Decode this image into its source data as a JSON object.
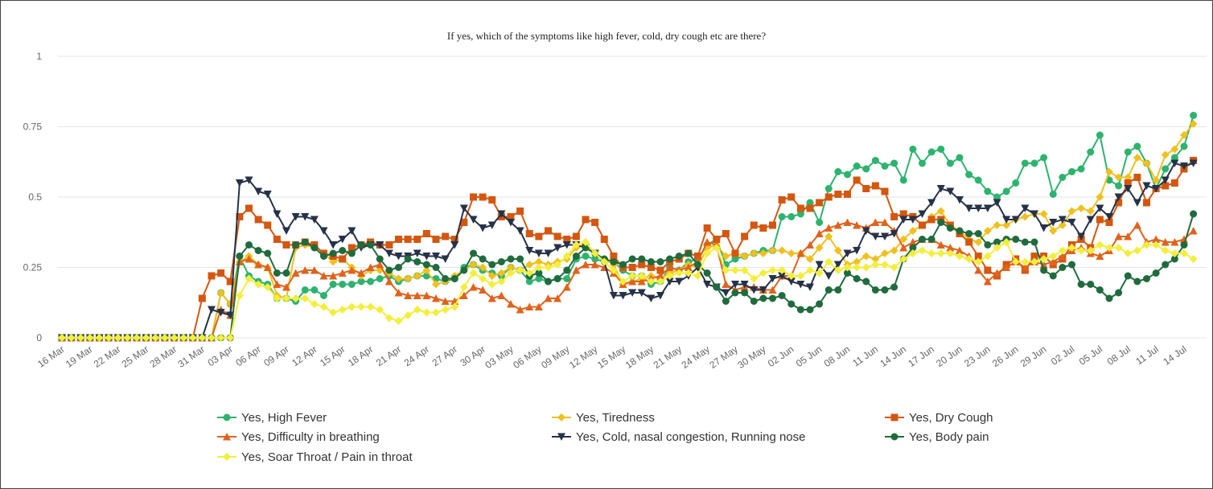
{
  "chart_data": {
    "type": "line",
    "title": "If yes, which of the symptoms like high fever, cold, dry cough etc are there?",
    "categories": [
      "16 Mar",
      null,
      null,
      "19 Mar",
      null,
      null,
      "22 Mar",
      null,
      null,
      "25 Mar",
      null,
      null,
      "28 Mar",
      null,
      null,
      "31 Mar",
      null,
      null,
      "03 Apr",
      null,
      null,
      "06 Apr",
      null,
      null,
      "09 Apr",
      null,
      null,
      "12 Apr",
      null,
      null,
      "15 Apr",
      null,
      null,
      "18 Apr",
      null,
      null,
      "21 Apr",
      null,
      null,
      "24 Apr",
      null,
      null,
      "27 Apr",
      null,
      null,
      "30 Apr",
      null,
      null,
      "03 May",
      null,
      null,
      "06 May",
      null,
      null,
      "09 May",
      null,
      null,
      "12 May",
      null,
      null,
      "15 May",
      null,
      null,
      "18 May",
      null,
      null,
      "21 May",
      null,
      null,
      "24 May",
      null,
      null,
      "27 May",
      null,
      null,
      "30 May",
      null,
      null,
      "02 Jun",
      null,
      null,
      "05 Jun",
      null,
      null,
      "08 Jun",
      null,
      null,
      "11 Jun",
      null,
      null,
      "14 Jun",
      null,
      null,
      "17 Jun",
      null,
      null,
      "20 Jun",
      null,
      null,
      "23 Jun",
      null,
      null,
      "26 Jun",
      null,
      null,
      "29 Jun",
      null,
      null,
      "02 Jul",
      null,
      null,
      "05 Jul",
      null,
      null,
      "08 Jul",
      null,
      null,
      "11 Jul",
      null,
      null,
      "14 Jul",
      null
    ],
    "ylim": [
      0,
      1
    ],
    "yticks": [
      0,
      0.25,
      0.5,
      0.75,
      1
    ],
    "grid": true,
    "series": [
      {
        "name": "Yes, High Fever",
        "color": "#2db36e",
        "marker": "circle",
        "values": [
          0,
          0,
          0,
          0,
          0,
          0,
          0,
          0,
          0,
          0,
          0,
          0,
          0,
          0,
          0,
          0,
          0,
          0.16,
          0.12,
          0.29,
          0.22,
          0.2,
          0.19,
          0.14,
          0.14,
          0.13,
          0.17,
          0.17,
          0.15,
          0.19,
          0.19,
          0.19,
          0.2,
          0.2,
          0.21,
          0.22,
          0.2,
          0.21,
          0.22,
          0.22,
          0.21,
          0.2,
          0.21,
          0.25,
          0.26,
          0.24,
          0.23,
          0.22,
          0.25,
          0.24,
          0.2,
          0.21,
          0.2,
          0.21,
          0.21,
          0.28,
          0.29,
          0.28,
          0.27,
          0.27,
          0.24,
          0.22,
          0.22,
          0.19,
          0.2,
          0.25,
          0.24,
          0.27,
          0.28,
          0.33,
          0.35,
          0.26,
          0.28,
          0.29,
          0.3,
          0.31,
          0.31,
          0.43,
          0.43,
          0.44,
          0.48,
          0.41,
          0.53,
          0.59,
          0.58,
          0.61,
          0.6,
          0.63,
          0.61,
          0.62,
          0.56,
          0.67,
          0.62,
          0.66,
          0.67,
          0.62,
          0.64,
          0.58,
          0.56,
          0.52,
          0.5,
          0.52,
          0.55,
          0.62,
          0.62,
          0.64,
          0.51,
          0.57,
          0.59,
          0.6,
          0.66,
          0.72,
          0.56,
          0.54,
          0.66,
          0.68,
          0.62,
          0.53,
          0.6,
          0.64,
          0.68,
          0.79
        ]
      },
      {
        "name": "Yes, Tiredness",
        "color": "#f0c020",
        "marker": "diamond",
        "values": [
          0,
          0,
          0,
          0,
          0,
          0,
          0,
          0,
          0,
          0,
          0,
          0,
          0,
          0,
          0,
          0,
          0,
          0.16,
          0.12,
          0.27,
          0.29,
          0.26,
          0.25,
          0.15,
          0.14,
          0.32,
          0.33,
          0.32,
          0.3,
          0.27,
          0.28,
          0.25,
          0.22,
          0.24,
          0.24,
          0.23,
          0.21,
          0.21,
          0.22,
          0.24,
          0.19,
          0.2,
          0.22,
          0.24,
          0.26,
          0.25,
          0.22,
          0.23,
          0.25,
          0.24,
          0.26,
          0.27,
          0.26,
          0.27,
          0.28,
          0.32,
          0.33,
          0.3,
          0.28,
          0.26,
          0.19,
          0.2,
          0.21,
          0.22,
          0.21,
          0.23,
          0.24,
          0.26,
          0.25,
          0.32,
          0.33,
          0.29,
          0.3,
          0.29,
          0.3,
          0.3,
          0.31,
          0.31,
          0.3,
          0.3,
          0.28,
          0.32,
          0.36,
          0.31,
          0.26,
          0.27,
          0.29,
          0.28,
          0.3,
          0.31,
          0.35,
          0.38,
          0.4,
          0.43,
          0.45,
          0.4,
          0.38,
          0.35,
          0.34,
          0.38,
          0.4,
          0.4,
          0.42,
          0.43,
          0.44,
          0.44,
          0.38,
          0.4,
          0.45,
          0.46,
          0.45,
          0.5,
          0.59,
          0.57,
          0.57,
          0.64,
          0.62,
          0.56,
          0.65,
          0.67,
          0.72,
          0.76
        ]
      },
      {
        "name": "Yes, Dry Cough",
        "color": "#d4570f",
        "marker": "square",
        "values": [
          0,
          0,
          0,
          0,
          0,
          0,
          0,
          0,
          0,
          0,
          0,
          0,
          0,
          0,
          0,
          0.14,
          0.22,
          0.23,
          0.2,
          0.43,
          0.46,
          0.42,
          0.4,
          0.35,
          0.33,
          0.33,
          0.34,
          0.33,
          0.3,
          0.29,
          0.28,
          0.32,
          0.33,
          0.34,
          0.33,
          0.33,
          0.35,
          0.35,
          0.35,
          0.37,
          0.35,
          0.36,
          0.35,
          0.41,
          0.5,
          0.5,
          0.49,
          0.43,
          0.43,
          0.45,
          0.37,
          0.36,
          0.38,
          0.36,
          0.35,
          0.36,
          0.42,
          0.41,
          0.35,
          0.29,
          0.25,
          0.25,
          0.26,
          0.25,
          0.24,
          0.27,
          0.28,
          0.3,
          0.29,
          0.39,
          0.35,
          0.37,
          0.3,
          0.36,
          0.4,
          0.39,
          0.4,
          0.49,
          0.5,
          0.46,
          0.46,
          0.48,
          0.5,
          0.51,
          0.51,
          0.56,
          0.53,
          0.54,
          0.52,
          0.43,
          0.44,
          0.43,
          0.4,
          0.42,
          0.42,
          0.4,
          0.37,
          0.34,
          0.29,
          0.24,
          0.22,
          0.26,
          0.28,
          0.24,
          0.29,
          0.29,
          0.26,
          0.28,
          0.33,
          0.35,
          0.32,
          0.42,
          0.41,
          0.48,
          0.55,
          0.57,
          0.48,
          0.53,
          0.54,
          0.55,
          0.6,
          0.63
        ]
      },
      {
        "name": "Yes, Difficulty in breathing",
        "color": "#e0621c",
        "marker": "triangle",
        "values": [
          0,
          0,
          0,
          0,
          0,
          0,
          0,
          0,
          0,
          0,
          0,
          0,
          0,
          0,
          0,
          0,
          0,
          0.1,
          0.08,
          0.27,
          0.28,
          0.26,
          0.25,
          0.19,
          0.18,
          0.23,
          0.24,
          0.24,
          0.22,
          0.22,
          0.23,
          0.24,
          0.23,
          0.25,
          0.26,
          0.2,
          0.16,
          0.15,
          0.15,
          0.15,
          0.14,
          0.13,
          0.13,
          0.15,
          0.18,
          0.17,
          0.14,
          0.15,
          0.12,
          0.1,
          0.11,
          0.11,
          0.14,
          0.14,
          0.18,
          0.24,
          0.26,
          0.26,
          0.25,
          0.23,
          0.19,
          0.2,
          0.2,
          0.21,
          0.22,
          0.25,
          0.24,
          0.25,
          0.27,
          0.34,
          0.33,
          0.19,
          0.17,
          0.18,
          0.18,
          0.17,
          0.17,
          0.22,
          0.22,
          0.3,
          0.33,
          0.37,
          0.39,
          0.4,
          0.41,
          0.4,
          0.39,
          0.41,
          0.41,
          0.38,
          0.32,
          0.34,
          0.35,
          0.35,
          0.33,
          0.32,
          0.31,
          0.29,
          0.24,
          0.2,
          0.23,
          0.25,
          0.27,
          0.25,
          0.27,
          0.26,
          0.27,
          0.29,
          0.31,
          0.32,
          0.3,
          0.29,
          0.31,
          0.36,
          0.36,
          0.4,
          0.34,
          0.35,
          0.34,
          0.34,
          0.35,
          0.38
        ]
      },
      {
        "name": "Yes, Cold, nasal congestion, Running nose",
        "color": "#263248",
        "marker": "triangle-down",
        "values": [
          0,
          0,
          0,
          0,
          0,
          0,
          0,
          0,
          0,
          0,
          0,
          0,
          0,
          0,
          0,
          0,
          0.1,
          0.09,
          0.08,
          0.55,
          0.56,
          0.52,
          0.51,
          0.44,
          0.38,
          0.43,
          0.43,
          0.42,
          0.38,
          0.33,
          0.35,
          0.38,
          0.32,
          0.33,
          0.33,
          0.3,
          0.29,
          0.29,
          0.3,
          0.29,
          0.29,
          0.28,
          0.33,
          0.46,
          0.42,
          0.39,
          0.4,
          0.44,
          0.41,
          0.38,
          0.31,
          0.3,
          0.3,
          0.32,
          0.33,
          0.33,
          0.32,
          0.3,
          0.27,
          0.15,
          0.15,
          0.16,
          0.16,
          0.14,
          0.15,
          0.2,
          0.2,
          0.22,
          0.25,
          0.19,
          0.18,
          0.16,
          0.19,
          0.19,
          0.17,
          0.17,
          0.21,
          0.22,
          0.2,
          0.19,
          0.18,
          0.26,
          0.22,
          0.26,
          0.3,
          0.31,
          0.38,
          0.36,
          0.36,
          0.37,
          0.42,
          0.42,
          0.44,
          0.48,
          0.53,
          0.52,
          0.49,
          0.46,
          0.46,
          0.46,
          0.48,
          0.42,
          0.42,
          0.46,
          0.44,
          0.39,
          0.41,
          0.42,
          0.41,
          0.36,
          0.42,
          0.46,
          0.43,
          0.5,
          0.53,
          0.48,
          0.54,
          0.53,
          0.56,
          0.62,
          0.61,
          0.62
        ]
      },
      {
        "name": "Yes, Body pain",
        "color": "#1f6b3d",
        "marker": "circle",
        "values": [
          0,
          0,
          0,
          0,
          0,
          0,
          0,
          0,
          0,
          0,
          0,
          0,
          0,
          0,
          0,
          0,
          0,
          0,
          0,
          0.29,
          0.33,
          0.31,
          0.3,
          0.23,
          0.23,
          0.33,
          0.34,
          0.32,
          0.29,
          0.3,
          0.31,
          0.3,
          0.33,
          0.33,
          0.28,
          0.24,
          0.25,
          0.28,
          0.27,
          0.26,
          0.25,
          0.21,
          0.21,
          0.24,
          0.3,
          0.28,
          0.26,
          0.27,
          0.28,
          0.28,
          0.22,
          0.23,
          0.2,
          0.21,
          0.24,
          0.29,
          0.32,
          0.3,
          0.28,
          0.27,
          0.26,
          0.28,
          0.28,
          0.27,
          0.27,
          0.28,
          0.29,
          0.3,
          0.26,
          0.23,
          0.18,
          0.13,
          0.16,
          0.16,
          0.13,
          0.14,
          0.14,
          0.15,
          0.12,
          0.1,
          0.1,
          0.12,
          0.17,
          0.17,
          0.23,
          0.21,
          0.2,
          0.17,
          0.17,
          0.18,
          0.28,
          0.32,
          0.35,
          0.35,
          0.41,
          0.39,
          0.38,
          0.37,
          0.37,
          0.33,
          0.34,
          0.35,
          0.35,
          0.34,
          0.34,
          0.24,
          0.22,
          0.25,
          0.26,
          0.19,
          0.19,
          0.17,
          0.14,
          0.16,
          0.22,
          0.2,
          0.21,
          0.23,
          0.26,
          0.28,
          0.33,
          0.44
        ]
      },
      {
        "name": "Yes, Soar Throat / Pain in throat",
        "color": "#f3ee3c",
        "marker": "diamond",
        "values": [
          0,
          0,
          0,
          0,
          0,
          0,
          0,
          0,
          0,
          0,
          0,
          0,
          0,
          0,
          0,
          0,
          0,
          0,
          0,
          0.15,
          0.21,
          0.19,
          0.18,
          0.14,
          0.14,
          0.14,
          0.14,
          0.12,
          0.11,
          0.09,
          0.1,
          0.11,
          0.11,
          0.11,
          0.1,
          0.07,
          0.06,
          0.08,
          0.1,
          0.09,
          0.09,
          0.1,
          0.11,
          0.18,
          0.23,
          0.21,
          0.19,
          0.2,
          0.23,
          0.24,
          0.23,
          0.25,
          0.25,
          0.26,
          0.29,
          0.33,
          0.34,
          0.3,
          0.27,
          0.24,
          0.2,
          0.22,
          0.22,
          0.2,
          0.2,
          0.22,
          0.23,
          0.23,
          0.22,
          0.3,
          0.32,
          0.24,
          0.24,
          0.24,
          0.21,
          0.23,
          0.24,
          0.24,
          0.22,
          0.22,
          0.24,
          0.23,
          0.27,
          0.24,
          0.25,
          0.25,
          0.25,
          0.26,
          0.26,
          0.25,
          0.28,
          0.3,
          0.31,
          0.3,
          0.3,
          0.3,
          0.29,
          0.28,
          0.27,
          0.29,
          0.32,
          0.34,
          0.27,
          0.27,
          0.27,
          0.28,
          0.29,
          0.31,
          0.32,
          0.31,
          0.31,
          0.33,
          0.32,
          0.32,
          0.3,
          0.31,
          0.33,
          0.33,
          0.31,
          0.3,
          0.3,
          0.28
        ]
      }
    ]
  }
}
